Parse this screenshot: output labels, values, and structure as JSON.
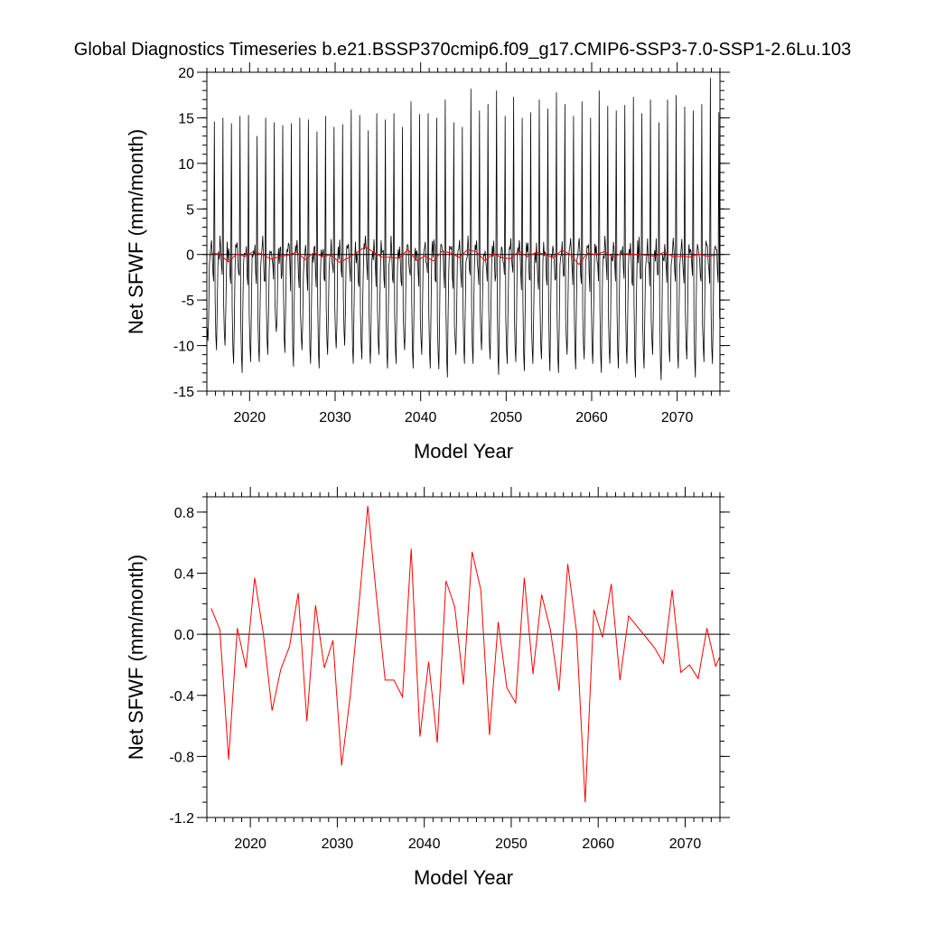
{
  "title": "Global Diagnostics Timeseries b.e21.BSSP370cmip6.f09_g17.CMIP6-SSP3-7.0-SSP1-2.6Lu.103",
  "chart_data": [
    {
      "type": "line",
      "xlabel": "Model Year",
      "ylabel": "Net SFWF (mm/month)",
      "xlim": [
        2015,
        2075
      ],
      "ylim": [
        -15,
        20
      ],
      "x_ticks": [
        2020,
        2030,
        2040,
        2050,
        2060,
        2070
      ],
      "y_ticks": [
        -15,
        -10,
        -5,
        0,
        5,
        10,
        15,
        20
      ],
      "y_tick_labels": [
        "-15",
        "-10",
        "-5",
        "0",
        "5",
        "10",
        "15",
        "20"
      ],
      "grid": false,
      "reference_line": 0,
      "series": [
        {
          "color": "#000000",
          "resolution": "monthly",
          "annual_max": [
            14.6,
            15.0,
            14.4,
            15.2,
            15.3,
            13.0,
            15.0,
            14.5,
            14.2,
            14.4,
            15.0,
            14.8,
            13.5,
            15.2,
            14.0,
            14.3,
            15.9,
            15.3,
            13.6,
            15.5,
            14.8,
            15.5,
            14.0,
            16.8,
            15.4,
            15.5,
            15.0,
            17.0,
            14.5,
            14.0,
            18.2,
            15.8,
            16.5,
            18.0,
            15.2,
            17.3,
            15.0,
            15.6,
            17.0,
            16.0,
            17.8,
            16.5,
            15.2,
            16.8,
            15.0,
            18.0,
            16.3,
            15.8,
            16.4,
            17.3,
            15.5,
            17.0,
            14.5,
            17.0,
            17.5,
            16.2,
            15.8,
            16.5,
            19.4,
            15.6
          ],
          "annual_min": [
            -9.5,
            -10.5,
            -10.0,
            -12.0,
            -13.0,
            -11.8,
            -11.8,
            -11.0,
            -8.5,
            -10.8,
            -12.3,
            -10.5,
            -12.0,
            -12.5,
            -11.0,
            -10.3,
            -10.0,
            -12.0,
            -11.5,
            -12.0,
            -11.0,
            -12.5,
            -12.0,
            -10.5,
            -12.5,
            -11.0,
            -12.5,
            -12.6,
            -13.5,
            -11.0,
            -12.0,
            -12.0,
            -10.5,
            -11.5,
            -13.2,
            -12.0,
            -11.8,
            -12.8,
            -12.0,
            -11.5,
            -12.8,
            -13.0,
            -11.0,
            -12.6,
            -11.5,
            -12.0,
            -13.0,
            -12.0,
            -12.5,
            -12.0,
            -13.5,
            -12.5,
            -11.0,
            -13.8,
            -11.8,
            -12.5,
            -11.5,
            -13.5,
            -11.8,
            -12.0
          ]
        },
        {
          "color": "#ff0000",
          "resolution": "annual",
          "x": [
            2015.5,
            2016.5,
            2017.5,
            2018.5,
            2019.5,
            2020.5,
            2021.5,
            2022.5,
            2023.5,
            2024.5,
            2025.5,
            2026.5,
            2027.5,
            2028.5,
            2029.5,
            2030.5,
            2031.5,
            2032.5,
            2033.5,
            2034.5,
            2035.5,
            2036.5,
            2037.5,
            2038.5,
            2039.5,
            2040.5,
            2041.5,
            2042.5,
            2043.5,
            2044.5,
            2045.5,
            2046.5,
            2047.5,
            2048.5,
            2049.5,
            2050.5,
            2051.5,
            2052.5,
            2053.5,
            2054.5,
            2055.5,
            2056.5,
            2057.5,
            2058.5,
            2059.5,
            2060.5,
            2061.5,
            2062.5,
            2063.5,
            2064.5,
            2065.5,
            2066.5,
            2067.5,
            2068.5,
            2069.5,
            2070.5,
            2071.5,
            2072.5,
            2073.5,
            2074.5
          ],
          "y": [
            0.17,
            0.03,
            -0.82,
            0.04,
            -0.22,
            0.37,
            0.0,
            -0.5,
            -0.23,
            -0.08,
            0.27,
            -0.57,
            0.19,
            -0.22,
            -0.04,
            -0.86,
            -0.4,
            0.2,
            0.84,
            0.25,
            -0.3,
            -0.3,
            -0.41,
            0.56,
            -0.67,
            -0.18,
            -0.71,
            0.35,
            0.18,
            -0.33,
            0.54,
            0.29,
            -0.66,
            0.08,
            -0.35,
            -0.45,
            0.37,
            -0.26,
            0.26,
            0.03,
            -0.37,
            0.46,
            0.02,
            -1.1,
            0.16,
            -0.02,
            0.33,
            -0.3,
            0.12,
            0.05,
            -0.02,
            -0.09,
            -0.19,
            0.29,
            -0.25,
            -0.2,
            -0.29,
            0.04,
            -0.21,
            -0.08
          ]
        }
      ]
    },
    {
      "type": "line",
      "xlabel": "Model Year",
      "ylabel": "Net SFWF (mm/month)",
      "xlim": [
        2015,
        2074
      ],
      "ylim": [
        -1.2,
        0.9
      ],
      "x_ticks": [
        2020,
        2030,
        2040,
        2050,
        2060,
        2070
      ],
      "y_ticks": [
        -1.2,
        -0.8,
        -0.4,
        0.0,
        0.4,
        0.8
      ],
      "y_tick_labels": [
        "-1.2",
        "-0.8",
        "-0.4",
        "0.0",
        "0.4",
        "0.8"
      ],
      "grid": false,
      "reference_line": 0,
      "series": [
        {
          "color": "#ff0000",
          "x": [
            2015.5,
            2016.5,
            2017.5,
            2018.5,
            2019.5,
            2020.5,
            2021.5,
            2022.5,
            2023.5,
            2024.5,
            2025.5,
            2026.5,
            2027.5,
            2028.5,
            2029.5,
            2030.5,
            2031.5,
            2032.5,
            2033.5,
            2034.5,
            2035.5,
            2036.5,
            2037.5,
            2038.5,
            2039.5,
            2040.5,
            2041.5,
            2042.5,
            2043.5,
            2044.5,
            2045.5,
            2046.5,
            2047.5,
            2048.5,
            2049.5,
            2050.5,
            2051.5,
            2052.5,
            2053.5,
            2054.5,
            2055.5,
            2056.5,
            2057.5,
            2058.5,
            2059.5,
            2060.5,
            2061.5,
            2062.5,
            2063.5,
            2064.5,
            2065.5,
            2066.5,
            2067.5,
            2068.5,
            2069.5,
            2070.5,
            2071.5,
            2072.5,
            2073.5,
            2074.5
          ],
          "y": [
            0.17,
            0.03,
            -0.82,
            0.04,
            -0.22,
            0.37,
            0.0,
            -0.5,
            -0.23,
            -0.08,
            0.27,
            -0.57,
            0.19,
            -0.22,
            -0.04,
            -0.86,
            -0.4,
            0.2,
            0.84,
            0.25,
            -0.3,
            -0.3,
            -0.41,
            0.56,
            -0.67,
            -0.18,
            -0.71,
            0.35,
            0.18,
            -0.33,
            0.54,
            0.29,
            -0.66,
            0.08,
            -0.35,
            -0.45,
            0.37,
            -0.26,
            0.26,
            0.03,
            -0.37,
            0.46,
            0.02,
            -1.1,
            0.16,
            -0.02,
            0.33,
            -0.3,
            0.12,
            0.05,
            -0.02,
            -0.09,
            -0.19,
            0.29,
            -0.25,
            -0.2,
            -0.29,
            0.04,
            -0.21,
            -0.08
          ]
        }
      ]
    }
  ]
}
